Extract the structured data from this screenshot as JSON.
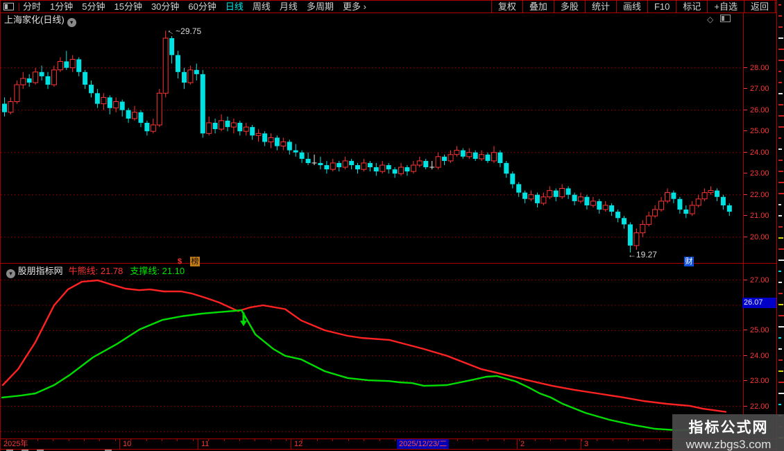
{
  "icons": {
    "chevron_down": "▾",
    "diamond": "◇",
    "arrow_left": "←",
    "more_chevron": "›"
  },
  "toolbar": {
    "periods": [
      "分时",
      "1分钟",
      "5分钟",
      "15分钟",
      "30分钟",
      "60分钟",
      "日线",
      "周线",
      "月线",
      "多周期",
      "更多 ›"
    ],
    "active_period": "日线",
    "right_buttons": [
      "复权",
      "叠加",
      "多股",
      "统计",
      "画线",
      "F10",
      "标记",
      "+自选",
      "返回"
    ]
  },
  "chart_header": {
    "title": "上海家化(日线)"
  },
  "main_chart": {
    "annotations": {
      "high": "~29.75",
      "low": "←19.27"
    },
    "badges": {
      "dollar": "$",
      "bang": "榜",
      "cai": "财"
    }
  },
  "indicator": {
    "source": "股朋指标网",
    "lines": [
      {
        "label": "牛熊线",
        "value": "21.78",
        "color": "#ff3232"
      },
      {
        "label": "支撑线",
        "value": "21.10",
        "color": "#00e600"
      }
    ],
    "cursor_value": "26.07"
  },
  "x_axis": {
    "labels": [
      {
        "text": "2025年",
        "x": 4,
        "sep": false
      },
      {
        "text": "10",
        "x": 176,
        "sep": true
      },
      {
        "text": "11",
        "x": 289,
        "sep": true
      },
      {
        "text": "12",
        "x": 423,
        "sep": true
      },
      {
        "text": "2",
        "x": 749,
        "sep": true
      },
      {
        "text": "3",
        "x": 841,
        "sep": true
      }
    ],
    "cursor": {
      "text": "2025/12/23/二",
      "x": 571
    }
  },
  "watermark": {
    "line1": "指标公式网",
    "line2": "www.zbgs3.com"
  },
  "chart_data": [
    {
      "type": "candlestick",
      "title": "上海家化(日线)",
      "ylim": [
        18.9,
        29.9
      ],
      "y_ticks": [
        28,
        27,
        26,
        25,
        24,
        23,
        22,
        21,
        20
      ],
      "grid_ticks": [
        28,
        26,
        24,
        22,
        20
      ],
      "up_color": "#ff3434",
      "down_color": "#00e2e2",
      "flat_color": "#eeeeee",
      "high_annotation": {
        "index": 26,
        "value": 29.75
      },
      "low_annotation": {
        "index": 101,
        "value": 19.27
      },
      "ohlc": [
        [
          26.3,
          26.6,
          25.7,
          25.9
        ],
        [
          25.9,
          26.6,
          25.8,
          26.4
        ],
        [
          26.4,
          27.4,
          26.3,
          27.2
        ],
        [
          27.2,
          27.8,
          27.0,
          27.5
        ],
        [
          27.5,
          27.7,
          27.1,
          27.3
        ],
        [
          27.3,
          28.0,
          27.2,
          27.8
        ],
        [
          27.8,
          28.1,
          27.4,
          27.6
        ],
        [
          27.6,
          27.8,
          27.0,
          27.2
        ],
        [
          27.2,
          28.1,
          27.1,
          27.9
        ],
        [
          27.9,
          28.5,
          27.8,
          28.3
        ],
        [
          28.3,
          28.8,
          27.9,
          28.0
        ],
        [
          28.0,
          28.6,
          27.8,
          28.4
        ],
        [
          28.4,
          28.5,
          27.6,
          27.8
        ],
        [
          27.8,
          27.9,
          27.0,
          27.2
        ],
        [
          27.2,
          27.4,
          26.6,
          26.8
        ],
        [
          26.8,
          27.0,
          26.1,
          26.3
        ],
        [
          26.3,
          26.8,
          26.0,
          26.6
        ],
        [
          26.6,
          26.7,
          25.8,
          26.1
        ],
        [
          26.1,
          26.6,
          25.9,
          26.4
        ],
        [
          26.4,
          26.5,
          25.7,
          26.0
        ],
        [
          26.0,
          26.1,
          25.4,
          25.6
        ],
        [
          25.6,
          26.2,
          25.5,
          25.9
        ],
        [
          25.9,
          26.0,
          25.2,
          25.4
        ],
        [
          25.4,
          25.5,
          24.8,
          25.0
        ],
        [
          25.0,
          25.6,
          24.9,
          25.3
        ],
        [
          25.3,
          27.0,
          25.2,
          26.8
        ],
        [
          26.8,
          29.75,
          26.6,
          29.4
        ],
        [
          29.4,
          29.5,
          28.2,
          28.6
        ],
        [
          28.6,
          28.8,
          27.5,
          27.8
        ],
        [
          27.8,
          28.0,
          27.0,
          27.3
        ],
        [
          27.3,
          28.1,
          27.2,
          27.9
        ],
        [
          27.9,
          28.2,
          27.4,
          27.7
        ],
        [
          27.7,
          27.9,
          24.7,
          24.9
        ],
        [
          24.9,
          25.7,
          24.8,
          25.4
        ],
        [
          25.4,
          25.6,
          24.9,
          25.1
        ],
        [
          25.1,
          25.8,
          25.0,
          25.5
        ],
        [
          25.5,
          25.7,
          25.0,
          25.2
        ],
        [
          25.2,
          25.6,
          24.9,
          25.4
        ],
        [
          25.4,
          25.5,
          24.8,
          25.0
        ],
        [
          25.0,
          25.4,
          24.8,
          25.2
        ],
        [
          25.2,
          25.3,
          24.6,
          24.8
        ],
        [
          24.8,
          25.1,
          24.5,
          24.9
        ],
        [
          24.9,
          25.0,
          24.3,
          24.5
        ],
        [
          24.5,
          24.9,
          24.2,
          24.7
        ],
        [
          24.7,
          24.8,
          24.1,
          24.3
        ],
        [
          24.3,
          24.7,
          24.1,
          24.5
        ],
        [
          24.5,
          24.6,
          23.9,
          24.1
        ],
        [
          24.1,
          24.4,
          23.8,
          24.0
        ],
        [
          24.0,
          24.1,
          23.5,
          23.7
        ],
        [
          23.7,
          24.0,
          23.4,
          23.5
        ],
        [
          23.5,
          23.9,
          23.4,
          23.5
        ],
        [
          23.5,
          23.8,
          23.2,
          23.4
        ],
        [
          23.4,
          23.6,
          23.0,
          23.2
        ],
        [
          23.2,
          23.7,
          23.1,
          23.5
        ],
        [
          23.5,
          23.6,
          23.1,
          23.3
        ],
        [
          23.3,
          23.8,
          23.2,
          23.6
        ],
        [
          23.6,
          23.7,
          23.2,
          23.4
        ],
        [
          23.4,
          23.5,
          23.0,
          23.2
        ],
        [
          23.2,
          23.7,
          23.1,
          23.5
        ],
        [
          23.5,
          23.6,
          23.1,
          23.3
        ],
        [
          23.3,
          23.5,
          22.9,
          23.1
        ],
        [
          23.1,
          23.6,
          23.0,
          23.4
        ],
        [
          23.4,
          23.5,
          23.0,
          23.2
        ],
        [
          23.2,
          23.3,
          22.8,
          23.0
        ],
        [
          23.0,
          23.5,
          22.9,
          23.3
        ],
        [
          23.3,
          23.4,
          22.9,
          23.1
        ],
        [
          23.1,
          23.6,
          23.0,
          23.4
        ],
        [
          23.4,
          23.8,
          23.3,
          23.6
        ],
        [
          23.6,
          23.7,
          23.2,
          23.3
        ],
        [
          23.3,
          23.6,
          23.2,
          23.3
        ],
        [
          23.3,
          24.0,
          23.2,
          23.8
        ],
        [
          23.8,
          23.9,
          23.4,
          23.6
        ],
        [
          23.6,
          24.1,
          23.5,
          23.9
        ],
        [
          23.9,
          24.3,
          23.8,
          24.1
        ],
        [
          24.1,
          24.2,
          23.7,
          23.8
        ],
        [
          23.8,
          24.2,
          23.7,
          24.0
        ],
        [
          24.0,
          24.1,
          23.6,
          23.7
        ],
        [
          23.7,
          24.1,
          23.6,
          23.9
        ],
        [
          23.9,
          24.0,
          23.5,
          23.6
        ],
        [
          23.6,
          24.3,
          23.5,
          24.0
        ],
        [
          24.0,
          24.1,
          23.3,
          23.5
        ],
        [
          23.5,
          23.6,
          22.8,
          23.0
        ],
        [
          23.0,
          23.1,
          22.3,
          22.5
        ],
        [
          22.5,
          22.6,
          21.9,
          22.1
        ],
        [
          22.1,
          22.2,
          21.6,
          21.8
        ],
        [
          21.8,
          22.2,
          21.7,
          22.0
        ],
        [
          22.0,
          22.1,
          21.4,
          21.6
        ],
        [
          21.6,
          22.1,
          21.5,
          21.9
        ],
        [
          21.9,
          22.4,
          21.8,
          22.2
        ],
        [
          22.2,
          22.3,
          21.7,
          21.9
        ],
        [
          21.9,
          22.5,
          21.8,
          22.3
        ],
        [
          22.3,
          22.4,
          21.8,
          22.0
        ],
        [
          22.0,
          22.1,
          21.5,
          21.7
        ],
        [
          21.7,
          22.1,
          21.6,
          21.9
        ],
        [
          21.9,
          22.0,
          21.3,
          21.5
        ],
        [
          21.5,
          21.9,
          21.4,
          21.7
        ],
        [
          21.7,
          21.8,
          21.1,
          21.3
        ],
        [
          21.3,
          21.7,
          21.2,
          21.5
        ],
        [
          21.5,
          21.6,
          21.0,
          21.2
        ],
        [
          21.2,
          21.3,
          20.7,
          20.9
        ],
        [
          20.9,
          21.0,
          20.4,
          20.6
        ],
        [
          20.6,
          20.7,
          19.27,
          19.6
        ],
        [
          19.6,
          20.4,
          19.4,
          20.2
        ],
        [
          20.2,
          20.8,
          20.0,
          20.6
        ],
        [
          20.6,
          21.2,
          20.5,
          21.0
        ],
        [
          21.0,
          21.5,
          20.9,
          21.3
        ],
        [
          21.3,
          21.9,
          21.2,
          21.7
        ],
        [
          21.7,
          22.3,
          21.6,
          22.1
        ],
        [
          22.1,
          22.2,
          21.6,
          21.8
        ],
        [
          21.8,
          21.9,
          21.1,
          21.3
        ],
        [
          21.3,
          21.5,
          20.9,
          21.1
        ],
        [
          21.1,
          21.7,
          21.0,
          21.5
        ],
        [
          21.5,
          22.0,
          21.4,
          21.8
        ],
        [
          21.8,
          22.3,
          21.7,
          22.1
        ],
        [
          22.1,
          22.4,
          22.0,
          22.2
        ],
        [
          22.2,
          22.3,
          21.7,
          21.9
        ],
        [
          21.9,
          22.0,
          21.3,
          21.5
        ],
        [
          21.5,
          21.6,
          21.0,
          21.2
        ]
      ]
    },
    {
      "type": "line",
      "title": "股朋指标网",
      "ylim": [
        20.7,
        27.6
      ],
      "y_ticks": [
        27,
        26,
        25,
        24,
        23,
        22
      ],
      "grid_ticks": [
        27,
        26,
        25,
        24,
        23,
        22,
        21
      ],
      "cursor": 26.07,
      "series": [
        {
          "name": "牛熊线",
          "color": "#ff2222",
          "last": 21.78,
          "points": [
            [
              3,
              22.84
            ],
            [
              25,
              23.47
            ],
            [
              50,
              24.54
            ],
            [
              77,
              26.0
            ],
            [
              97,
              26.63
            ],
            [
              117,
              26.93
            ],
            [
              140,
              26.99
            ],
            [
              160,
              26.82
            ],
            [
              180,
              26.66
            ],
            [
              200,
              26.6
            ],
            [
              215,
              26.63
            ],
            [
              235,
              26.55
            ],
            [
              260,
              26.55
            ],
            [
              275,
              26.47
            ],
            [
              295,
              26.3
            ],
            [
              315,
              26.11
            ],
            [
              330,
              25.92
            ],
            [
              342,
              25.77
            ],
            [
              360,
              25.92
            ],
            [
              378,
              26.0
            ],
            [
              410,
              25.85
            ],
            [
              433,
              25.4
            ],
            [
              467,
              25.01
            ],
            [
              500,
              24.79
            ],
            [
              520,
              24.71
            ],
            [
              560,
              24.63
            ],
            [
              610,
              24.27
            ],
            [
              643,
              24.0
            ],
            [
              693,
              23.47
            ],
            [
              710,
              23.36
            ],
            [
              760,
              23.03
            ],
            [
              795,
              22.81
            ],
            [
              827,
              22.65
            ],
            [
              860,
              22.51
            ],
            [
              893,
              22.37
            ],
            [
              927,
              22.21
            ],
            [
              960,
              22.1
            ],
            [
              993,
              22.02
            ],
            [
              1013,
              21.9
            ],
            [
              1045,
              21.78
            ]
          ]
        },
        {
          "name": "支撑线",
          "color": "#00dd00",
          "last": 21.1,
          "points": [
            [
              2,
              22.35
            ],
            [
              30,
              22.43
            ],
            [
              50,
              22.51
            ],
            [
              77,
              22.84
            ],
            [
              100,
              23.25
            ],
            [
              133,
              23.94
            ],
            [
              167,
              24.46
            ],
            [
              200,
              25.04
            ],
            [
              233,
              25.42
            ],
            [
              260,
              25.56
            ],
            [
              290,
              25.67
            ],
            [
              315,
              25.73
            ],
            [
              337,
              25.78
            ],
            [
              347,
              25.81
            ],
            [
              367,
              24.85
            ],
            [
              393,
              24.27
            ],
            [
              410,
              24.0
            ],
            [
              433,
              23.86
            ],
            [
              467,
              23.39
            ],
            [
              500,
              23.12
            ],
            [
              530,
              23.03
            ],
            [
              560,
              23.0
            ],
            [
              575,
              22.95
            ],
            [
              593,
              22.92
            ],
            [
              610,
              22.81
            ],
            [
              643,
              22.84
            ],
            [
              677,
              23.03
            ],
            [
              700,
              23.17
            ],
            [
              715,
              23.2
            ],
            [
              743,
              22.98
            ],
            [
              760,
              22.76
            ],
            [
              777,
              22.51
            ],
            [
              793,
              22.35
            ],
            [
              810,
              22.1
            ],
            [
              843,
              21.74
            ],
            [
              877,
              21.47
            ],
            [
              910,
              21.27
            ],
            [
              943,
              21.11
            ],
            [
              977,
              21.05
            ],
            [
              1010,
              21.1
            ]
          ]
        }
      ],
      "signal_arrow": {
        "x": 350,
        "from": 25.72,
        "to": 25.28,
        "direction": "down",
        "color": "#00dd00"
      }
    }
  ]
}
